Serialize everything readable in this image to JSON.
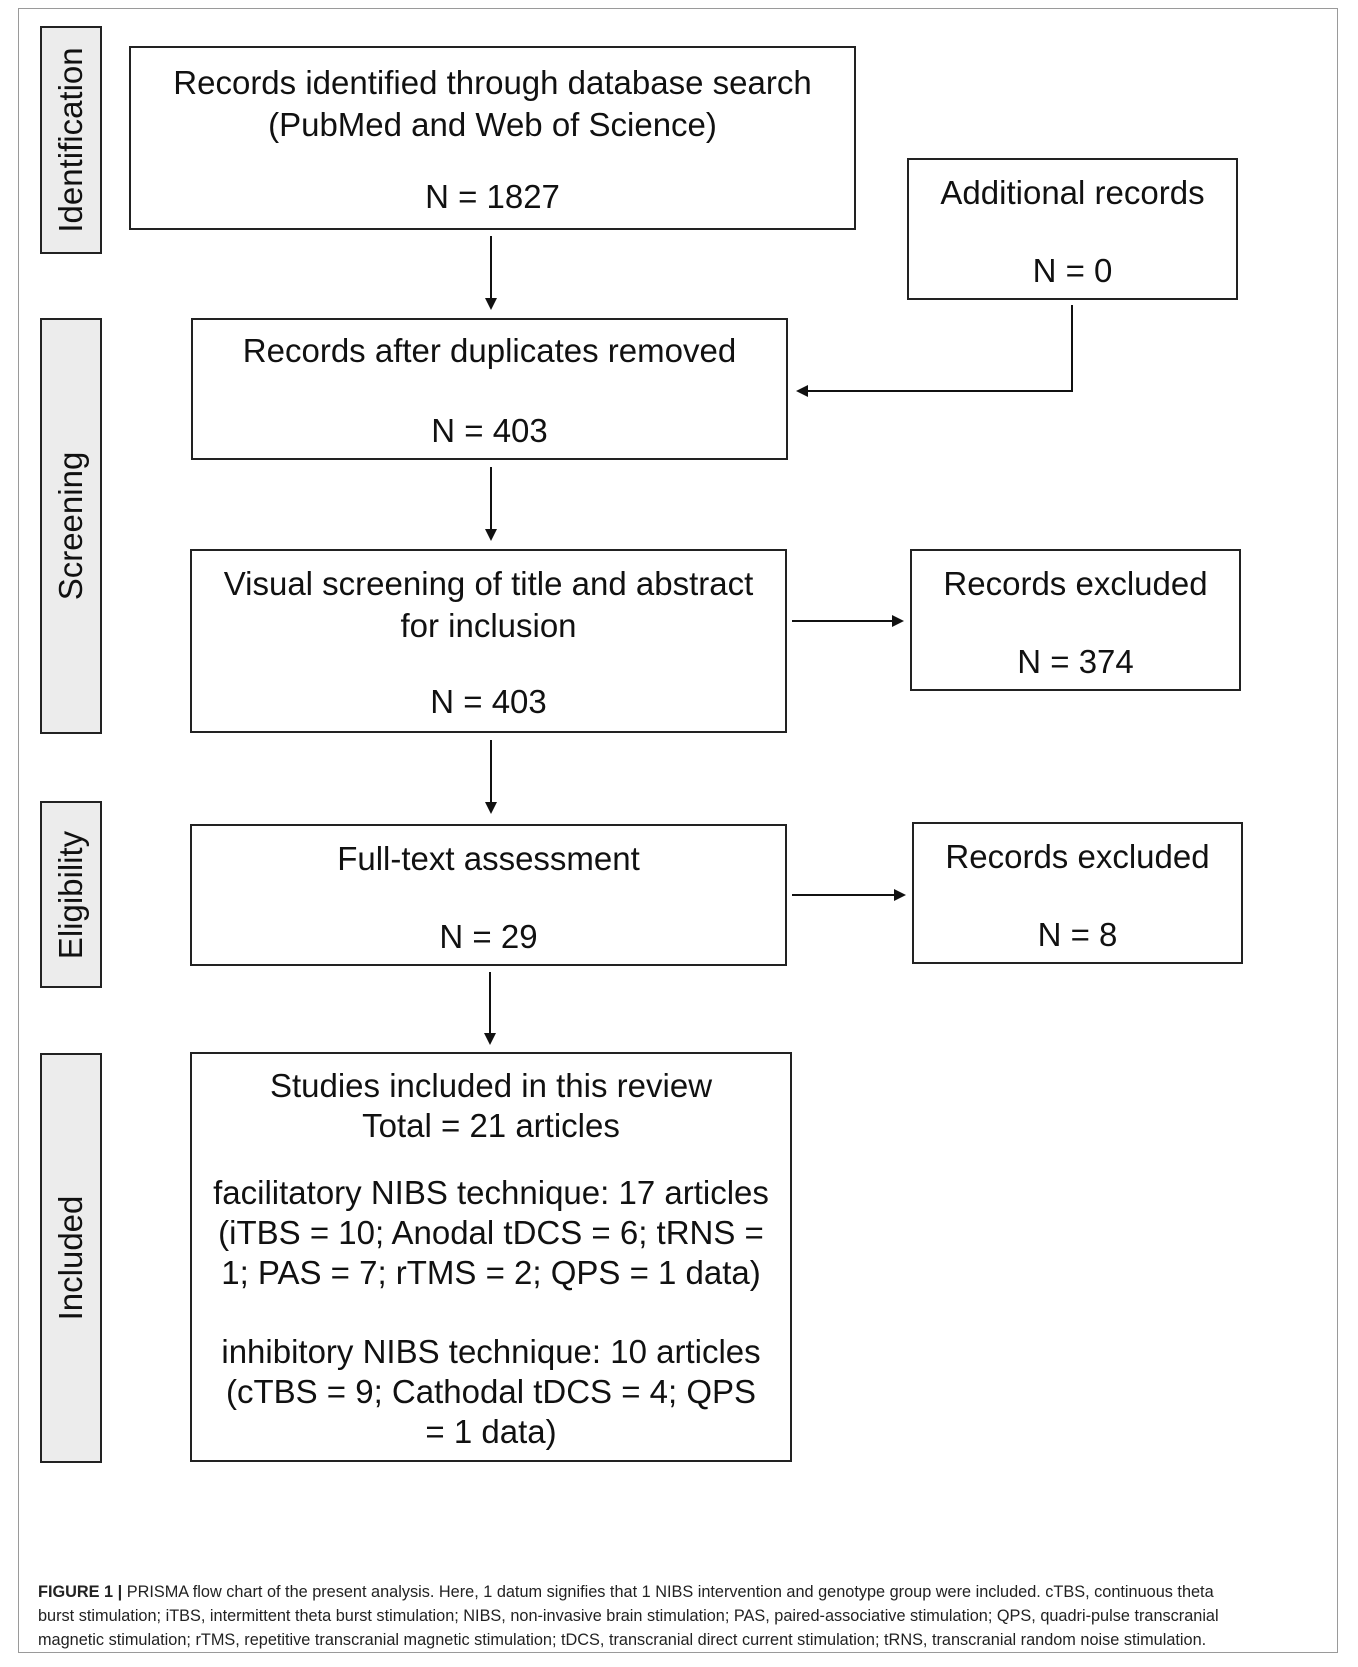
{
  "phases": {
    "identification": "Identification",
    "screening": "Screening",
    "eligibility": "Eligibility",
    "included": "Included"
  },
  "boxes": {
    "database": {
      "title_1": "Records identified through database search",
      "title_2": "(PubMed and Web of Science)",
      "n": "N = 1827"
    },
    "additional": {
      "title": "Additional records",
      "n": "N = 0"
    },
    "duplicates": {
      "title": "Records after duplicates removed",
      "n": "N = 403"
    },
    "visual_screening": {
      "title_1": "Visual screening of title and abstract",
      "title_2": "for inclusion",
      "n": "N = 403"
    },
    "excluded_screening": {
      "title": "Records excluded",
      "n": "N = 374"
    },
    "fulltext": {
      "title": "Full-text assessment",
      "n": "N = 29"
    },
    "excluded_eligibility": {
      "title": "Records excluded",
      "n": "N = 8"
    },
    "included": {
      "line_1": "Studies included in this review",
      "line_2": "Total = 21 articles",
      "facilitatory_1": "facilitatory NIBS technique: 17 articles",
      "facilitatory_2": "(iTBS = 10; Anodal tDCS = 6; tRNS =",
      "facilitatory_3": "1; PAS = 7; rTMS = 2; QPS = 1 data)",
      "inhibitory_1": "inhibitory NIBS technique: 10 articles",
      "inhibitory_2": "(cTBS = 9; Cathodal tDCS = 4; QPS",
      "inhibitory_3": "= 1 data)"
    }
  },
  "caption": {
    "label": "FIGURE 1 |",
    "line_1": "PRISMA flow chart of the present analysis. Here, 1 datum signifies that 1 NIBS intervention and genotype group were included. cTBS, continuous theta",
    "line_2": "burst stimulation; iTBS, intermittent theta burst stimulation; NIBS, non-invasive brain stimulation; PAS, paired-associative stimulation; QPS, quadri-pulse transcranial",
    "line_3": "magnetic stimulation; rTMS, repetitive transcranial magnetic stimulation; tDCS, transcranial direct current stimulation; tRNS, transcranial random noise stimulation."
  }
}
